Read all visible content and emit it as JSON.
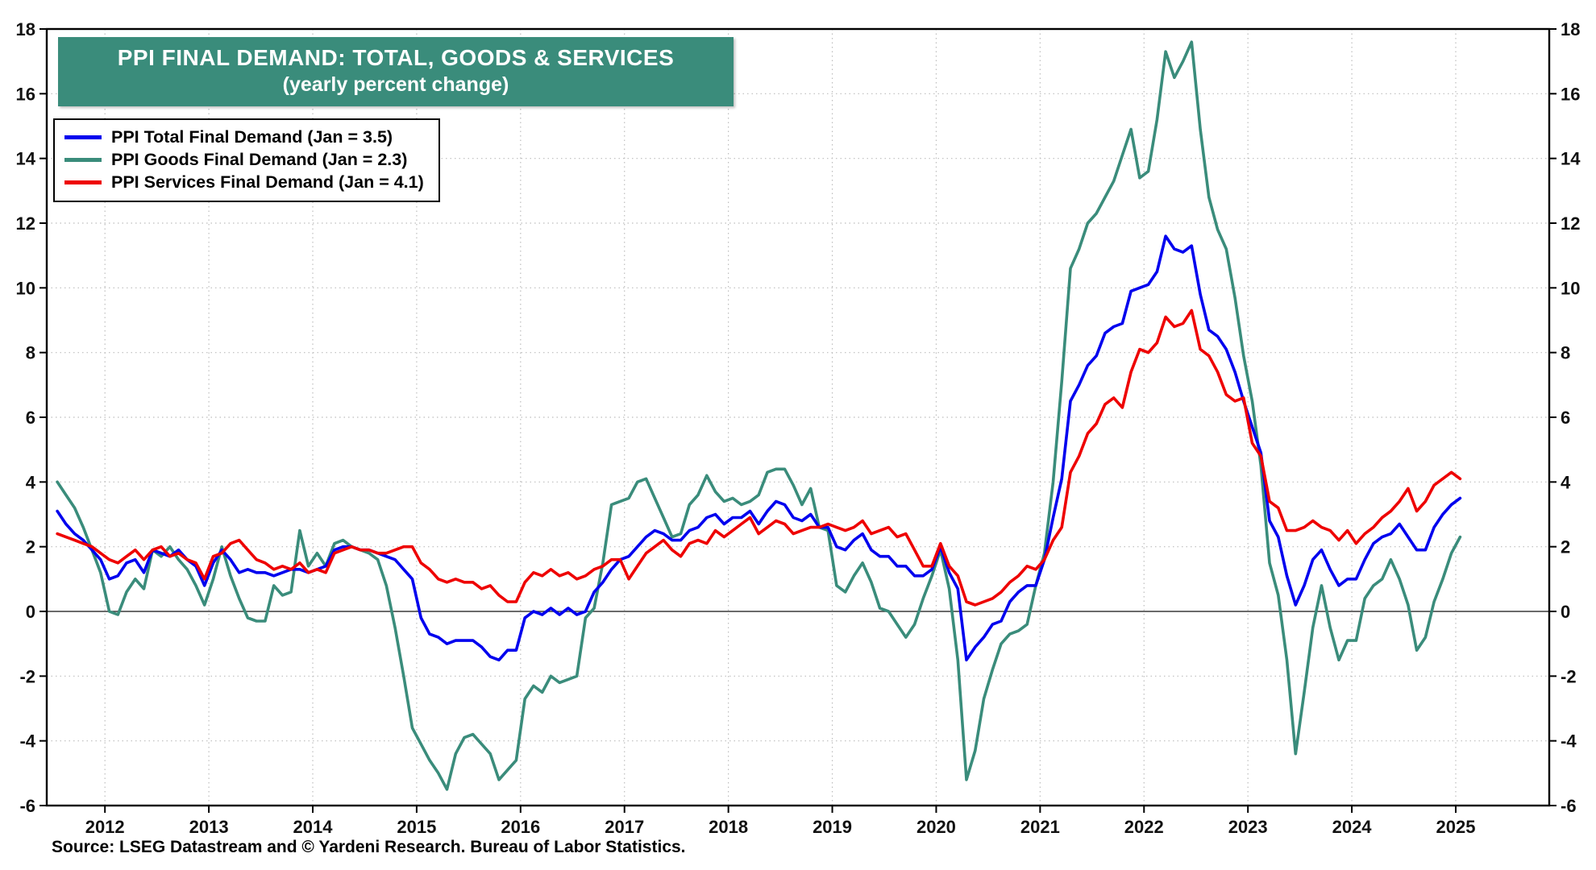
{
  "colors": {
    "teal": "#3A8C7B",
    "blue": "#0000EE",
    "red": "#EE0000",
    "grid": "#BDBDBD",
    "background": "#FFFFFF"
  },
  "chart_data": {
    "type": "line",
    "title": "PPI FINAL DEMAND: TOTAL, GOODS & SERVICES",
    "subtitle": "(yearly percent change)",
    "source": "Source: LSEG Datastream and © Yardeni Research. Bureau of Labor Statistics.",
    "legend_position": "top-left",
    "grid": "dotted",
    "zero_line": true,
    "x_start": {
      "year": 2011,
      "month": 7
    },
    "frequency": "monthly",
    "xlim": [
      2011.44,
      2025.9
    ],
    "ylim": [
      -6,
      18
    ],
    "y_ticks": [
      -6,
      -4,
      -2,
      0,
      2,
      4,
      6,
      8,
      10,
      12,
      14,
      16,
      18
    ],
    "x_tick_years": [
      2012,
      2013,
      2014,
      2015,
      2016,
      2017,
      2018,
      2019,
      2020,
      2021,
      2022,
      2023,
      2024,
      2025
    ],
    "series": [
      {
        "name": "PPI Total Final Demand (Jan = 3.5)",
        "color": "#0000EE",
        "values": [
          3.1,
          2.7,
          2.4,
          2.2,
          1.9,
          1.6,
          1.0,
          1.1,
          1.5,
          1.6,
          1.2,
          1.9,
          1.8,
          1.7,
          1.9,
          1.6,
          1.4,
          0.8,
          1.5,
          1.9,
          1.6,
          1.2,
          1.3,
          1.2,
          1.2,
          1.1,
          1.2,
          1.3,
          1.3,
          1.2,
          1.3,
          1.4,
          1.9,
          2.0,
          2.0,
          1.9,
          1.9,
          1.8,
          1.7,
          1.6,
          1.3,
          1.0,
          -0.2,
          -0.7,
          -0.8,
          -1.0,
          -0.9,
          -0.9,
          -0.9,
          -1.1,
          -1.4,
          -1.5,
          -1.2,
          -1.2,
          -0.2,
          0.0,
          -0.1,
          0.1,
          -0.1,
          0.1,
          -0.1,
          0.0,
          0.6,
          0.9,
          1.3,
          1.6,
          1.7,
          2.0,
          2.3,
          2.5,
          2.4,
          2.2,
          2.2,
          2.5,
          2.6,
          2.9,
          3.0,
          2.7,
          2.9,
          2.9,
          3.1,
          2.7,
          3.1,
          3.4,
          3.3,
          2.9,
          2.8,
          3.0,
          2.6,
          2.6,
          2.0,
          1.9,
          2.2,
          2.4,
          1.9,
          1.7,
          1.7,
          1.4,
          1.4,
          1.1,
          1.1,
          1.3,
          2.0,
          1.2,
          0.7,
          -1.5,
          -1.1,
          -0.8,
          -0.4,
          -0.3,
          0.3,
          0.6,
          0.8,
          0.8,
          1.6,
          2.9,
          4.1,
          6.5,
          7.0,
          7.6,
          7.9,
          8.6,
          8.8,
          8.9,
          9.9,
          10.0,
          10.1,
          10.5,
          11.6,
          11.2,
          11.1,
          11.3,
          9.8,
          8.7,
          8.5,
          8.1,
          7.4,
          6.5,
          5.7,
          4.9,
          2.8,
          2.3,
          1.1,
          0.2,
          0.8,
          1.6,
          1.9,
          1.3,
          0.8,
          1.0,
          1.0,
          1.6,
          2.1,
          2.3,
          2.4,
          2.7,
          2.3,
          1.9,
          1.9,
          2.6,
          3.0,
          3.3,
          3.5
        ]
      },
      {
        "name": "PPI Goods Final Demand (Jan = 2.3)",
        "color": "#3A8C7B",
        "values": [
          4.0,
          3.6,
          3.2,
          2.6,
          1.9,
          1.2,
          0.0,
          -0.1,
          0.6,
          1.0,
          0.7,
          1.9,
          1.7,
          2.0,
          1.6,
          1.3,
          0.8,
          0.2,
          1.0,
          2.0,
          1.1,
          0.4,
          -0.2,
          -0.3,
          -0.3,
          0.8,
          0.5,
          0.6,
          2.5,
          1.4,
          1.8,
          1.4,
          2.1,
          2.2,
          2.0,
          1.9,
          1.8,
          1.6,
          0.8,
          -0.5,
          -2.0,
          -3.6,
          -4.1,
          -4.6,
          -5.0,
          -5.5,
          -4.4,
          -3.9,
          -3.8,
          -4.1,
          -4.4,
          -5.2,
          -4.9,
          -4.6,
          -2.7,
          -2.3,
          -2.5,
          -2.0,
          -2.2,
          -2.1,
          -2.0,
          -0.2,
          0.1,
          1.5,
          3.3,
          3.4,
          3.5,
          4.0,
          4.1,
          3.5,
          2.9,
          2.3,
          2.4,
          3.3,
          3.6,
          4.2,
          3.7,
          3.4,
          3.5,
          3.3,
          3.4,
          3.6,
          4.3,
          4.4,
          4.4,
          3.9,
          3.3,
          3.8,
          2.6,
          2.5,
          0.8,
          0.6,
          1.1,
          1.5,
          0.9,
          0.1,
          0.0,
          -0.4,
          -0.8,
          -0.4,
          0.4,
          1.1,
          1.9,
          0.7,
          -1.5,
          -5.2,
          -4.3,
          -2.7,
          -1.8,
          -1.0,
          -0.7,
          -0.6,
          -0.4,
          0.8,
          1.8,
          4.0,
          7.1,
          10.6,
          11.2,
          12.0,
          12.3,
          12.8,
          13.3,
          14.1,
          14.9,
          13.4,
          13.6,
          15.2,
          17.3,
          16.5,
          17.0,
          17.6,
          14.9,
          12.8,
          11.8,
          11.2,
          9.7,
          7.9,
          6.5,
          4.5,
          1.5,
          0.5,
          -1.5,
          -4.4,
          -2.5,
          -0.5,
          0.8,
          -0.5,
          -1.5,
          -0.9,
          -0.9,
          0.4,
          0.8,
          1.0,
          1.6,
          1.0,
          0.2,
          -1.2,
          -0.8,
          0.3,
          1.0,
          1.8,
          2.3
        ]
      },
      {
        "name": "PPI Services Final Demand (Jan = 4.1)",
        "color": "#EE0000",
        "values": [
          2.4,
          2.3,
          2.2,
          2.1,
          2.0,
          1.8,
          1.6,
          1.5,
          1.7,
          1.9,
          1.6,
          1.9,
          2.0,
          1.7,
          1.8,
          1.6,
          1.5,
          1.0,
          1.7,
          1.8,
          2.1,
          2.2,
          1.9,
          1.6,
          1.5,
          1.3,
          1.4,
          1.3,
          1.5,
          1.2,
          1.3,
          1.2,
          1.8,
          1.9,
          2.0,
          1.9,
          1.9,
          1.8,
          1.8,
          1.9,
          2.0,
          2.0,
          1.5,
          1.3,
          1.0,
          0.9,
          1.0,
          0.9,
          0.9,
          0.7,
          0.8,
          0.5,
          0.3,
          0.3,
          0.9,
          1.2,
          1.1,
          1.3,
          1.1,
          1.2,
          1.0,
          1.1,
          1.3,
          1.4,
          1.6,
          1.6,
          1.0,
          1.4,
          1.8,
          2.0,
          2.2,
          1.9,
          1.7,
          2.1,
          2.2,
          2.1,
          2.5,
          2.3,
          2.5,
          2.7,
          2.9,
          2.4,
          2.6,
          2.8,
          2.7,
          2.4,
          2.5,
          2.6,
          2.6,
          2.7,
          2.6,
          2.5,
          2.6,
          2.8,
          2.4,
          2.5,
          2.6,
          2.3,
          2.4,
          1.9,
          1.4,
          1.4,
          2.1,
          1.4,
          1.1,
          0.3,
          0.2,
          0.3,
          0.4,
          0.6,
          0.9,
          1.1,
          1.4,
          1.3,
          1.6,
          2.2,
          2.6,
          4.3,
          4.8,
          5.5,
          5.8,
          6.4,
          6.6,
          6.3,
          7.4,
          8.1,
          8.0,
          8.3,
          9.1,
          8.8,
          8.9,
          9.3,
          8.1,
          7.9,
          7.4,
          6.7,
          6.5,
          6.6,
          5.2,
          4.8,
          3.4,
          3.2,
          2.5,
          2.5,
          2.6,
          2.8,
          2.6,
          2.5,
          2.2,
          2.5,
          2.1,
          2.4,
          2.6,
          2.9,
          3.1,
          3.4,
          3.8,
          3.1,
          3.4,
          3.9,
          4.1,
          4.3,
          4.1
        ]
      }
    ]
  }
}
